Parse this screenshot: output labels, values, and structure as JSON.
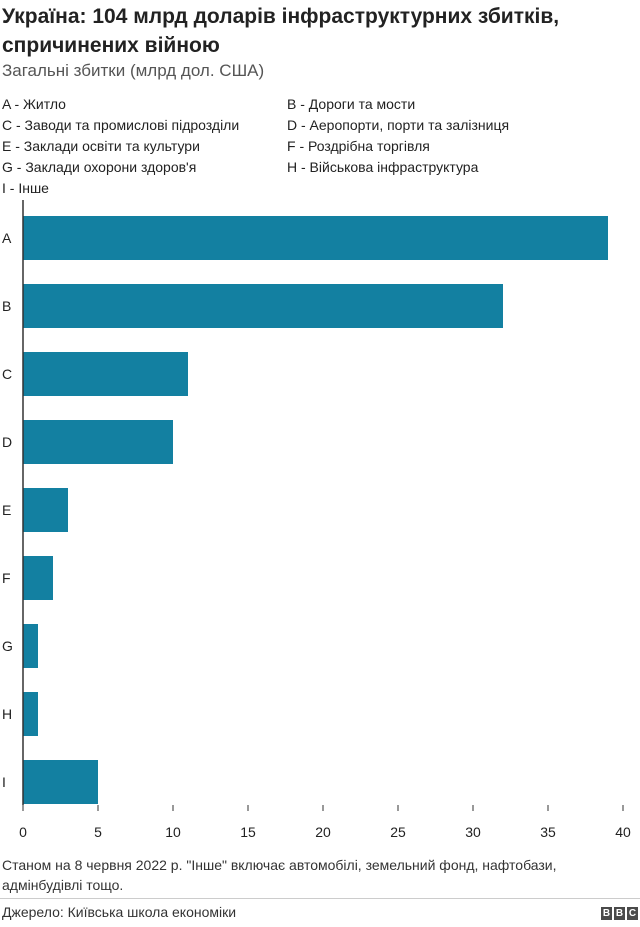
{
  "header": {
    "title": "Україна: 104 млрд доларів інфраструктурних збитків, спричинених війною",
    "subtitle": "Загальні збитки (млрд дол. США)"
  },
  "legend": [
    "A - Житло",
    "B - Дороги та мости",
    "C - Заводи та промислові підрозділи",
    "D - Аеропорти, порти та залізниця",
    "E - Заклади освіти та культури",
    "F - Роздрібна торгівля",
    "G - Заклади охорони здоров'я",
    "H - Військова інфраструктура",
    "I - Інше"
  ],
  "chart_data": {
    "type": "bar",
    "orientation": "horizontal",
    "categories": [
      "A",
      "B",
      "C",
      "D",
      "E",
      "F",
      "G",
      "H",
      "I"
    ],
    "values": [
      39,
      32,
      11,
      10,
      3,
      2,
      1,
      1,
      5
    ],
    "xlim": [
      0,
      40
    ],
    "xticks": [
      0,
      5,
      10,
      15,
      20,
      25,
      30,
      35,
      40
    ],
    "grid": false,
    "bar_color": "#1380a1"
  },
  "footer": {
    "note": "Станом на 8 червня 2022 р. \"Інше\" включає автомобілі, земельний фонд, нафтобази, адмінбудівлі тощо.",
    "source": "Джерело: Київська школа економіки",
    "logo_letters": [
      "B",
      "B",
      "C"
    ]
  }
}
